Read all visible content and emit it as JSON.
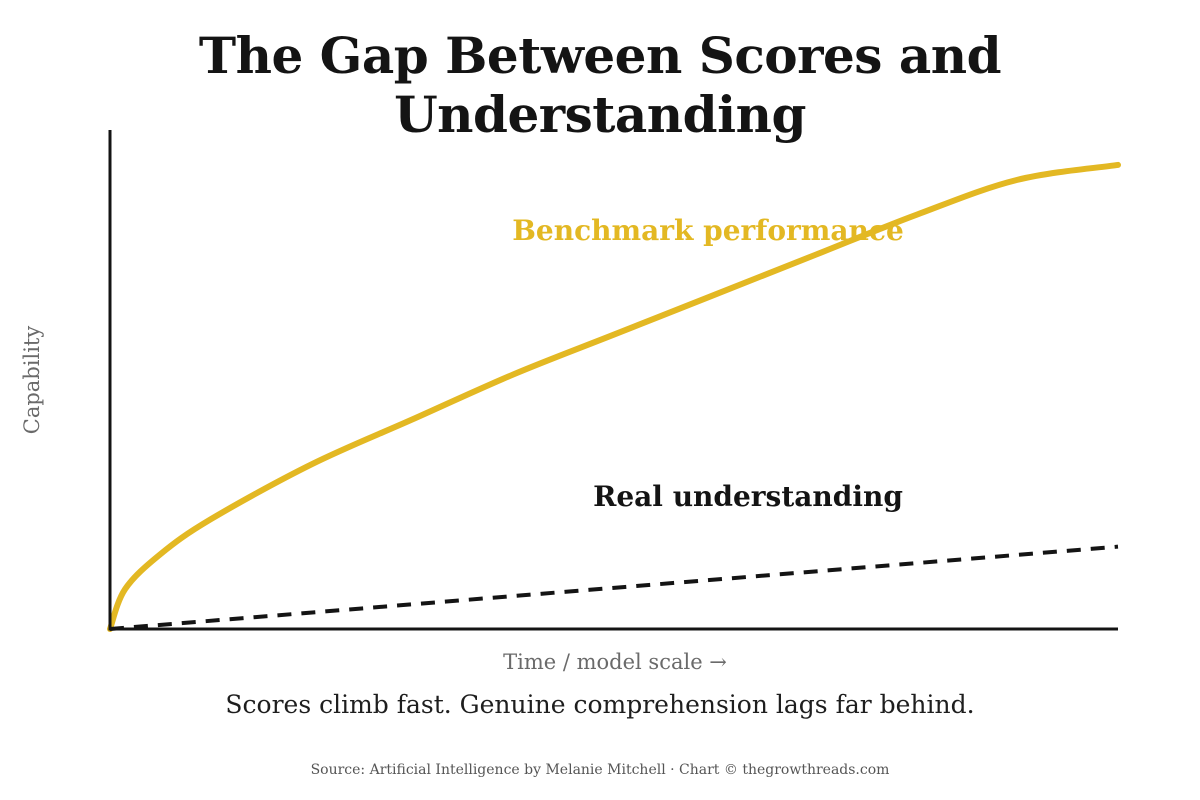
{
  "colors": {
    "benchmark": "#e3b823",
    "understanding": "#141414",
    "axis": "#141414"
  },
  "chart_data": {
    "type": "line",
    "title": "The Gap Between Scores and Understanding",
    "subtitle": "Scores climb fast. Genuine comprehension lags far behind.",
    "xlabel": "Time / model scale →",
    "ylabel": "Capability",
    "grid": false,
    "xlim": [
      0,
      1
    ],
    "ylim": [
      0,
      1
    ],
    "series": [
      {
        "name": "Benchmark performance",
        "style": "solid",
        "x": [
          0,
          0.015,
          0.05,
          0.1,
          0.2,
          0.3,
          0.4,
          0.5,
          0.6,
          0.7,
          0.8,
          0.9,
          1.0
        ],
        "values": [
          0,
          0.08,
          0.15,
          0.22,
          0.33,
          0.42,
          0.51,
          0.59,
          0.67,
          0.75,
          0.83,
          0.9,
          0.93
        ]
      },
      {
        "name": "Real understanding",
        "style": "dashed",
        "x": [
          0,
          1.0
        ],
        "values": [
          0,
          0.165
        ]
      }
    ]
  },
  "source": "Source: Artificial Intelligence by Melanie Mitchell · Chart © thegrowthreads.com"
}
